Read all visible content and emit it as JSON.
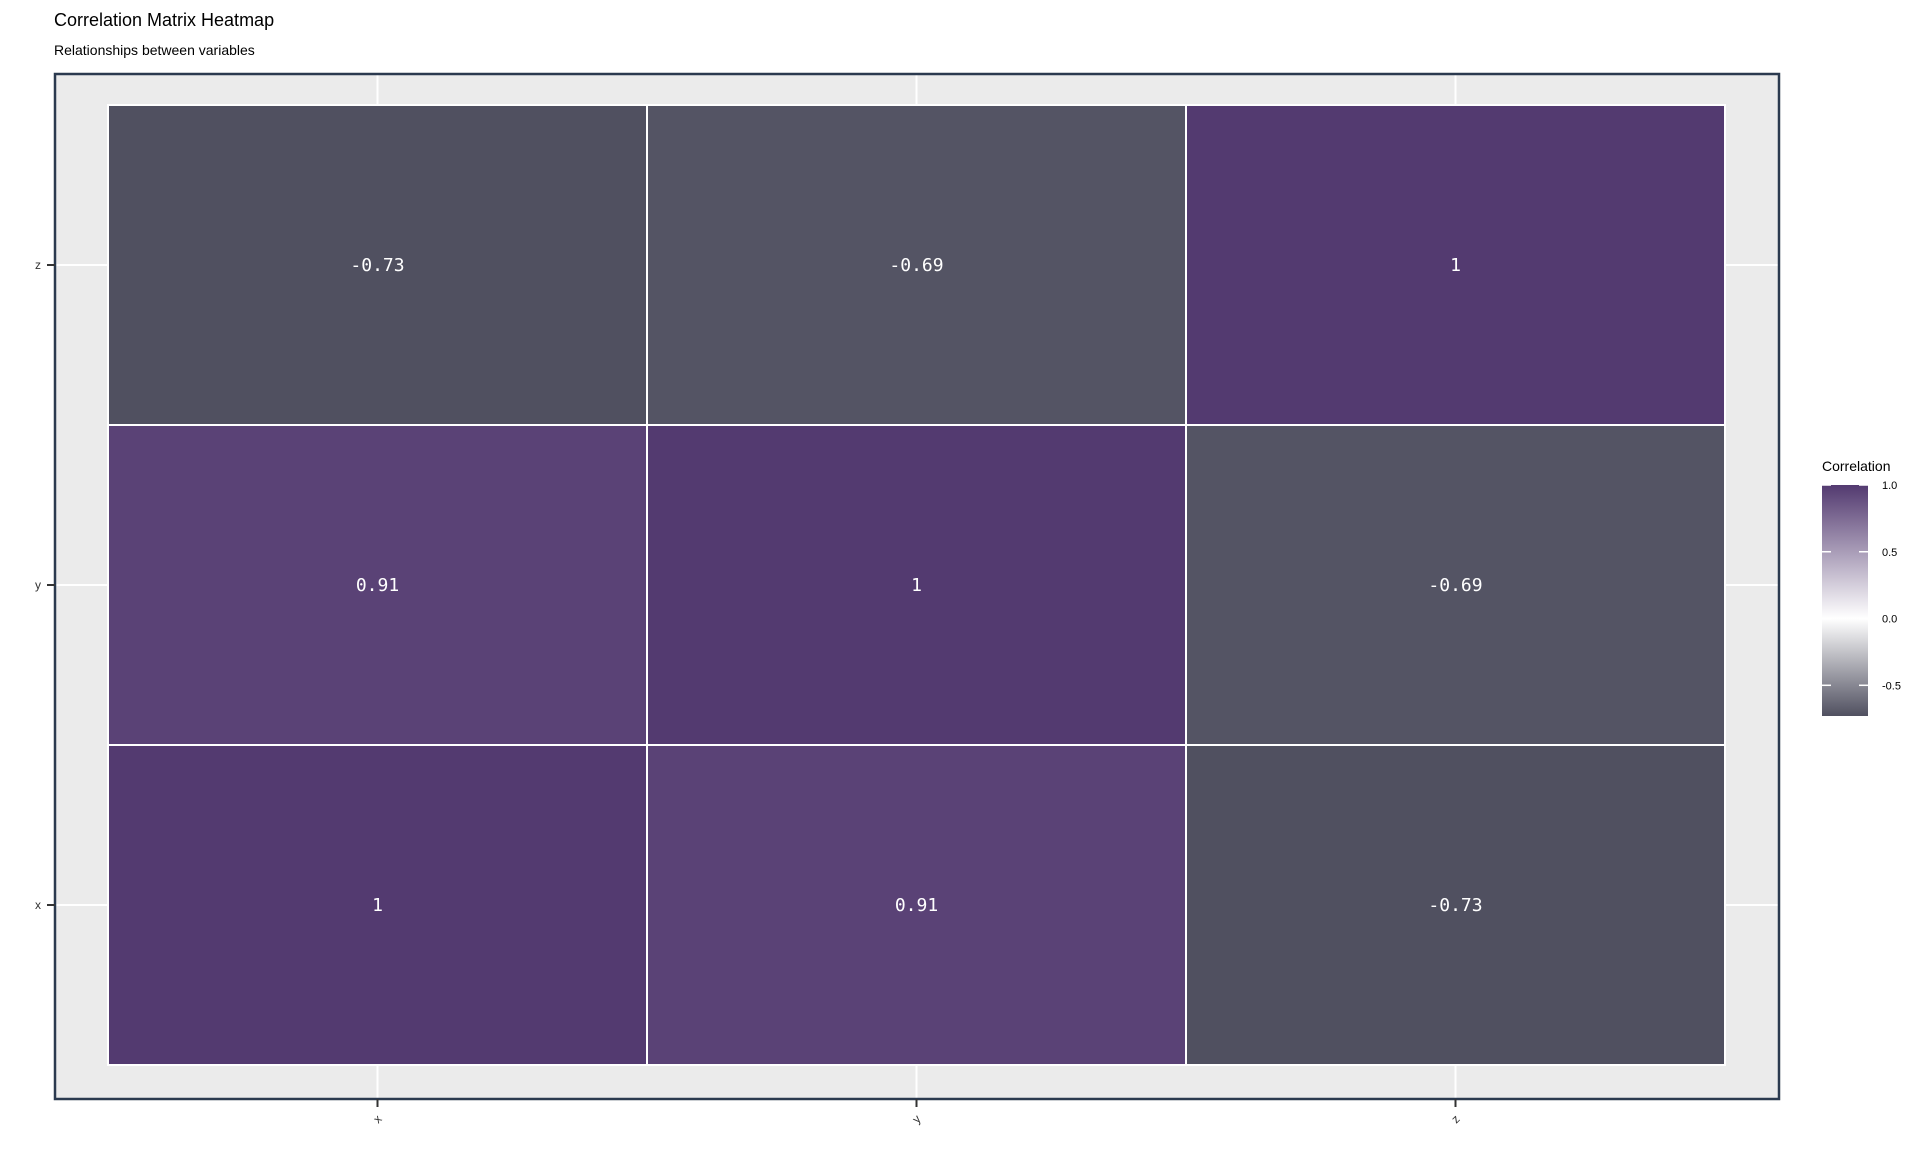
{
  "title": "Correlation Matrix Heatmap",
  "subtitle": "Relationships between variables",
  "chart_data": {
    "type": "heatmap",
    "title": "Correlation Matrix Heatmap",
    "subtitle": "Relationships between variables",
    "x_categories": [
      "x",
      "y",
      "z"
    ],
    "y_categories": [
      "x",
      "y",
      "z"
    ],
    "cells": [
      {
        "x": "x",
        "y": "x",
        "value": 1,
        "label": "1"
      },
      {
        "x": "y",
        "y": "x",
        "value": 0.91,
        "label": "0.91"
      },
      {
        "x": "z",
        "y": "x",
        "value": -0.73,
        "label": "-0.73"
      },
      {
        "x": "x",
        "y": "y",
        "value": 0.91,
        "label": "0.91"
      },
      {
        "x": "y",
        "y": "y",
        "value": 1,
        "label": "1"
      },
      {
        "x": "z",
        "y": "y",
        "value": -0.69,
        "label": "-0.69"
      },
      {
        "x": "x",
        "y": "z",
        "value": -0.73,
        "label": "-0.73"
      },
      {
        "x": "y",
        "y": "z",
        "value": -0.69,
        "label": "-0.69"
      },
      {
        "x": "z",
        "y": "z",
        "value": 1,
        "label": "1"
      }
    ],
    "legend": {
      "title": "Correlation",
      "ticks": [
        1.0,
        0.5,
        0.0,
        -0.5
      ],
      "tick_labels": [
        "1.0",
        "0.5",
        "0.0",
        "-0.5"
      ],
      "range": [
        -0.73,
        1.0
      ],
      "placement": "right"
    },
    "colors": {
      "high": "#533a70",
      "mid": "#ffffff",
      "low": "#505060",
      "panel_background": "#ebebeb",
      "panel_border": "#2b3a4f",
      "grid": "#ffffff"
    },
    "grid": true
  }
}
